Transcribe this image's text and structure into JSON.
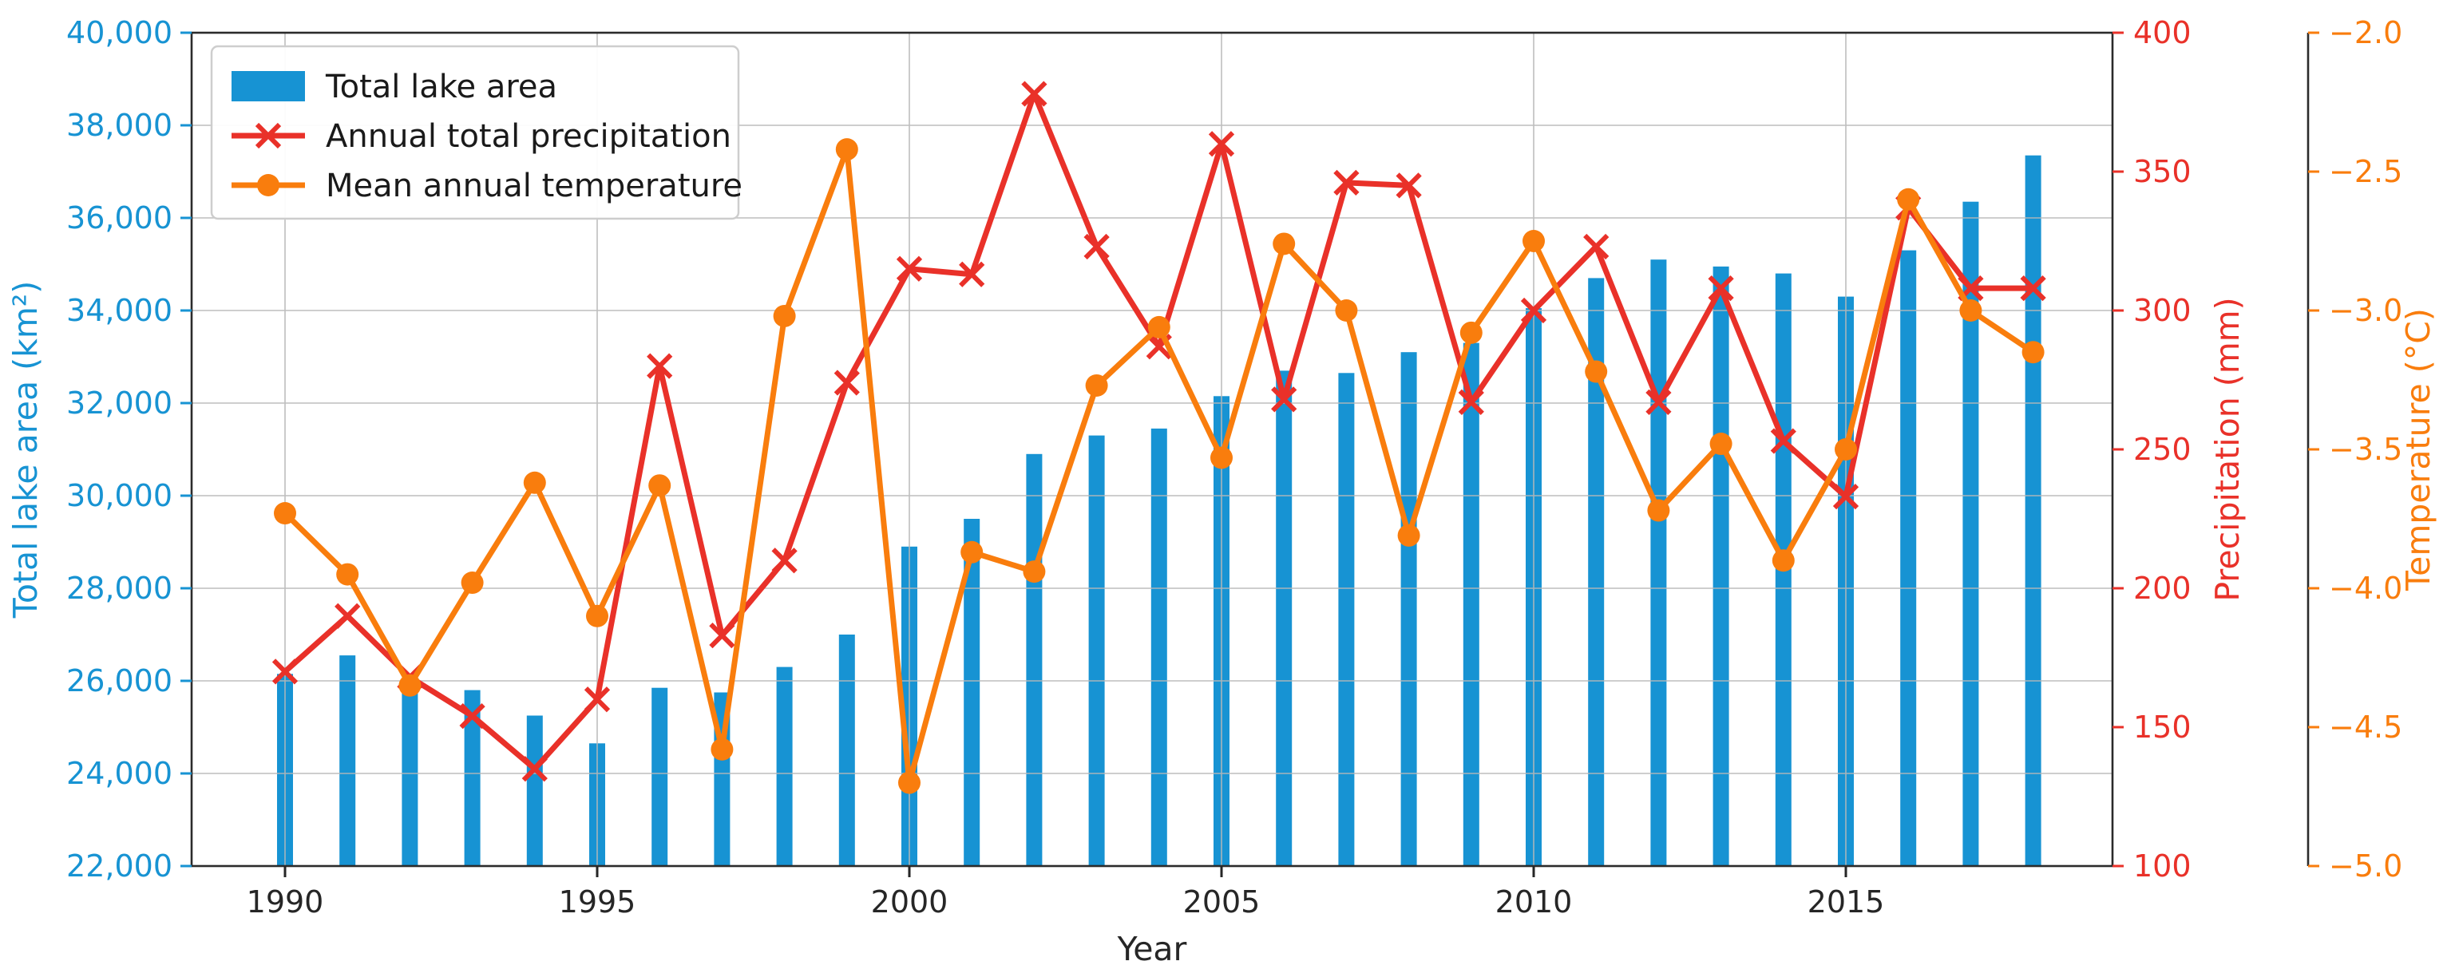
{
  "chart_data": {
    "type": "bar",
    "title": "",
    "categories": [
      1990,
      1991,
      1992,
      1993,
      1994,
      1995,
      1996,
      1997,
      1998,
      1999,
      2000,
      2001,
      2002,
      2003,
      2004,
      2005,
      2006,
      2007,
      2008,
      2009,
      2010,
      2011,
      2012,
      2013,
      2014,
      2015,
      2016,
      2017,
      2018
    ],
    "series": [
      {
        "name": "Total lake area",
        "render": "bar",
        "axis": "left",
        "color": "#1793d3",
        "values": [
          26150,
          26550,
          26000,
          25800,
          25250,
          24650,
          25850,
          25750,
          26300,
          27000,
          28900,
          29500,
          30900,
          31300,
          31450,
          32150,
          32700,
          32650,
          33100,
          33300,
          34050,
          34700,
          35100,
          34950,
          34800,
          34300,
          35300,
          36350,
          37350
        ]
      },
      {
        "name": "Annual total precipitation",
        "render": "line",
        "marker": "x",
        "axis": "precip",
        "color": "#e93129",
        "values": [
          170,
          190,
          168,
          154,
          135,
          160,
          280,
          183,
          210,
          274,
          315,
          313,
          378,
          323,
          287,
          360,
          268,
          346,
          345,
          267,
          300,
          323,
          267,
          308,
          253,
          233,
          337,
          308,
          308
        ]
      },
      {
        "name": "Mean annual temperature",
        "render": "line",
        "marker": "circle",
        "axis": "temp",
        "color": "#f97d0d",
        "values": [
          -3.73,
          -3.95,
          -4.35,
          -3.98,
          -3.62,
          -4.1,
          -3.63,
          -4.58,
          -3.02,
          -2.42,
          -4.7,
          -3.87,
          -3.94,
          -3.27,
          -3.06,
          -3.53,
          -2.76,
          -3.0,
          -3.81,
          -3.08,
          -2.75,
          -3.22,
          -3.72,
          -3.48,
          -3.9,
          -3.5,
          -2.6,
          -3.0,
          -3.15
        ]
      }
    ],
    "axes": {
      "left": {
        "label": "Total lake area (km²)",
        "min": 22000,
        "max": 40000,
        "tick_values": [
          22000,
          24000,
          26000,
          28000,
          30000,
          32000,
          34000,
          36000,
          38000,
          40000
        ],
        "tick_labels": [
          "22,000",
          "24,000",
          "26,000",
          "28,000",
          "30,000",
          "32,000",
          "34,000",
          "36,000",
          "38,000",
          "40,000"
        ],
        "color": "#1793d3"
      },
      "x": {
        "label": "Year",
        "tick_values": [
          1990,
          1995,
          2000,
          2005,
          2010,
          2015
        ],
        "tick_labels": [
          "1990",
          "1995",
          "2000",
          "2005",
          "2010",
          "2015"
        ],
        "color": "#262626"
      },
      "precip": {
        "label": "Precipitation (mm)",
        "min": 100,
        "max": 400,
        "tick_values": [
          100,
          150,
          200,
          250,
          300,
          350,
          400
        ],
        "tick_labels": [
          "100",
          "150",
          "200",
          "250",
          "300",
          "350",
          "400"
        ],
        "color": "#e93129"
      },
      "temp": {
        "label": "Temperature (°C)",
        "min": -5.0,
        "max": -2.0,
        "tick_values": [
          -5.0,
          -4.5,
          -4.0,
          -3.5,
          -3.0,
          -2.5,
          -2.0
        ],
        "tick_labels": [
          "−5.0",
          "−4.5",
          "−4.0",
          "−3.5",
          "−3.0",
          "−2.5",
          "−2.0"
        ],
        "color": "#f97d0d"
      },
      "grid": true,
      "grid_color": "#b8b8b8",
      "frame_color": "#2b2b2b"
    },
    "legend": {
      "position": "top-left",
      "entries": [
        "Total lake area",
        "Annual total precipitation",
        "Mean annual temperature"
      ]
    }
  }
}
